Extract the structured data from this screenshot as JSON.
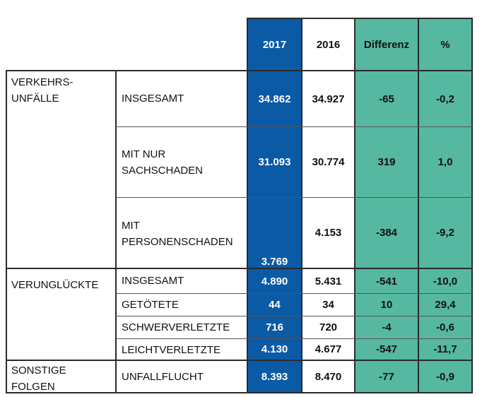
{
  "header": {
    "y2017": "2017",
    "y2016": "2016",
    "diff": "Differenz",
    "pct": "%"
  },
  "groups": {
    "g1": "VERKEHRS-\nUNFÄLLE",
    "g2": "VERUNGLÜCKTE",
    "g3": "SONSTIGE\nFOLGEN"
  },
  "rows": [
    {
      "label": "INSGESAMT",
      "v2017": "34.862",
      "v2016": "34.927",
      "diff": "-65",
      "pct": "-0,2"
    },
    {
      "label": "MIT NUR\nSACHSCHADEN",
      "v2017": "31.093",
      "v2016": "30.774",
      "diff": "319",
      "pct": "1,0"
    },
    {
      "label": "MIT\nPERSONENSCHADEN",
      "v2017": "3.769",
      "v2016": "4.153",
      "diff": "-384",
      "pct": "-9,2"
    },
    {
      "label": "INSGESAMT",
      "v2017": "4.890",
      "v2016": "5.431",
      "diff": "-541",
      "pct": "-10,0"
    },
    {
      "label": "GETÖTETE",
      "v2017": "44",
      "v2016": "34",
      "diff": "10",
      "pct": "29,4"
    },
    {
      "label": "SCHWERVERLETZTE",
      "v2017": "716",
      "v2016": "720",
      "diff": "-4",
      "pct": "-0,6"
    },
    {
      "label": "LEICHTVERLETZTE",
      "v2017": "4.130",
      "v2016": "4.677",
      "diff": "-547",
      "pct": "-11,7"
    },
    {
      "label": "UNFALLFLUCHT",
      "v2017": "8.393",
      "v2016": "8.470",
      "diff": "-77",
      "pct": "-0,9"
    }
  ],
  "colors": {
    "blue": "#0b5aa6",
    "green": "#56b8a0"
  }
}
